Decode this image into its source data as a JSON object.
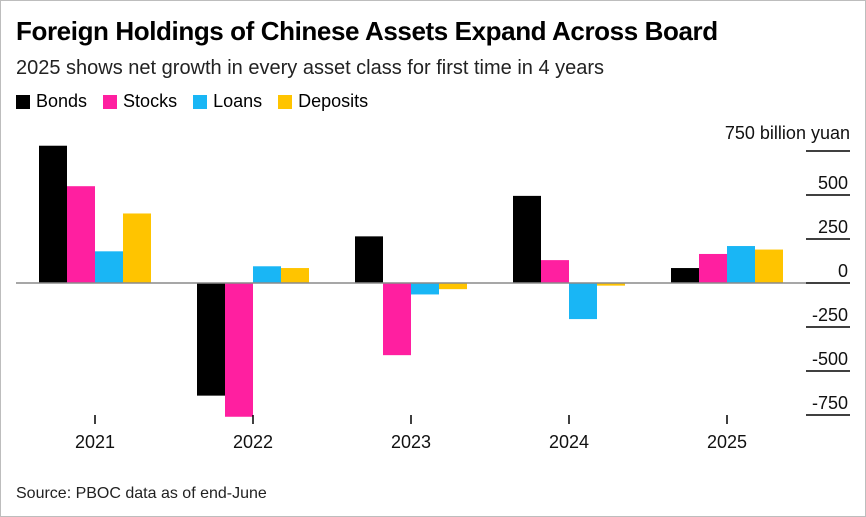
{
  "title": "Foreign Holdings of Chinese Assets Expand Across Board",
  "subtitle": "2025 shows net growth in every asset class for first time in 4 years",
  "source": "Source: PBOC data as of end-June",
  "chart_data": {
    "type": "bar",
    "categories": [
      "2021",
      "2022",
      "2023",
      "2024",
      "2025"
    ],
    "series": [
      {
        "name": "Bonds",
        "color": "#000000",
        "values": [
          780,
          -640,
          265,
          495,
          85
        ]
      },
      {
        "name": "Stocks",
        "color": "#ff1fa0",
        "values": [
          550,
          -760,
          -410,
          130,
          165
        ]
      },
      {
        "name": "Loans",
        "color": "#19b6f5",
        "values": [
          180,
          95,
          -65,
          -205,
          210
        ]
      },
      {
        "name": "Deposits",
        "color": "#ffc400",
        "values": [
          395,
          85,
          -35,
          -15,
          190
        ]
      }
    ],
    "unit_label": "750 billion yuan",
    "yticks": [
      750,
      500,
      250,
      0,
      -250,
      -500,
      -750
    ],
    "ytick_labels": [
      "",
      "500",
      "250",
      "0",
      "-250",
      "-500",
      "-750"
    ],
    "ylim": [
      -750,
      750
    ],
    "legend_position": "top-left",
    "grid": false
  }
}
